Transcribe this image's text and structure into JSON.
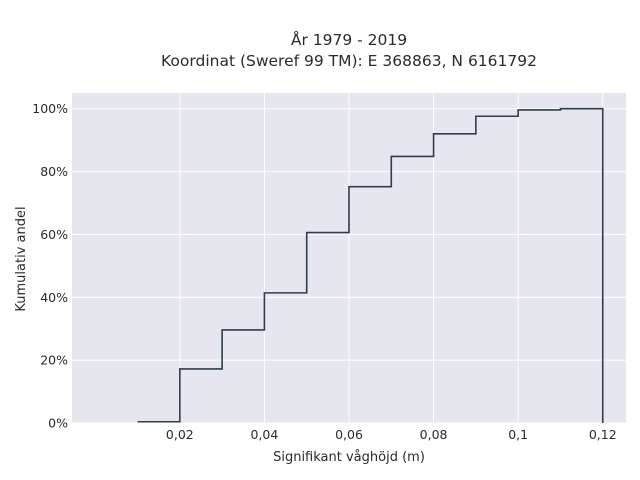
{
  "chart_data": {
    "type": "line",
    "line_shape": "step",
    "title_line1": "År 1979 - 2019",
    "title_line2": "Koordinat (Sweref 99 TM): E 368863, N 6161792",
    "xlabel": "Signifikant våghöjd (m)",
    "ylabel": "Kumulativ andel",
    "xlim": [
      -0.0055,
      0.1255
    ],
    "ylim": [
      0,
      1.05
    ],
    "x_ticks": [
      0.02,
      0.04,
      0.06,
      0.08,
      0.1,
      0.12
    ],
    "x_tick_labels": [
      "0,02",
      "0,04",
      "0,06",
      "0,08",
      "0,1",
      "0,12"
    ],
    "y_ticks": [
      0,
      0.2,
      0.4,
      0.6,
      0.8,
      1.0
    ],
    "y_tick_labels": [
      "0%",
      "20%",
      "40%",
      "60%",
      "80%",
      "100%"
    ],
    "grid": true,
    "x": [
      0.01,
      0.02,
      0.03,
      0.04,
      0.05,
      0.06,
      0.07,
      0.08,
      0.09,
      0.1,
      0.11,
      0.12
    ],
    "y": [
      0.004,
      0.172,
      0.296,
      0.414,
      0.606,
      0.752,
      0.848,
      0.92,
      0.976,
      0.996,
      1.0,
      0.0
    ],
    "colors": {
      "line": "#2f3e4e",
      "plot_bg": "#e5e6ee",
      "grid": "#ffffff"
    }
  }
}
